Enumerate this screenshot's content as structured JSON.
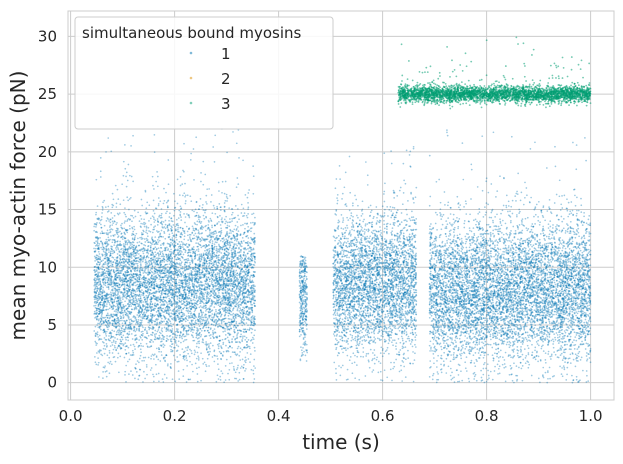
{
  "chart_data": {
    "type": "scatter",
    "title": "",
    "xlabel": "time (s)",
    "ylabel": "mean myo-actin force (pN)",
    "xlim": [
      -0.005,
      1.045
    ],
    "ylim": [
      -1.5,
      32.2
    ],
    "xticks": [
      "0.0",
      "0.2",
      "0.4",
      "0.6",
      "0.8",
      "1.0"
    ],
    "xtick_values": [
      0.0,
      0.2,
      0.4,
      0.6,
      0.8,
      1.0
    ],
    "yticks": [
      "0",
      "5",
      "10",
      "15",
      "20",
      "25",
      "30"
    ],
    "ytick_values": [
      0,
      5,
      10,
      15,
      20,
      25,
      30
    ],
    "grid": true,
    "legend": {
      "title": "simultaneous bound myosins",
      "placement": "top-left",
      "entries": [
        "1",
        "2",
        "3"
      ]
    },
    "series": [
      {
        "name": "1",
        "color": "#0173b2",
        "segments": [
          {
            "t_start": 0.045,
            "t_end": 0.355,
            "mean_force": 8.5,
            "spread": 3.2,
            "max_force": 22
          },
          {
            "t_start": 0.44,
            "t_end": 0.455,
            "mean_force": 7.0,
            "spread": 2.2,
            "max_force": 11
          },
          {
            "t_start": 0.505,
            "t_end": 0.665,
            "mean_force": 8.5,
            "spread": 3.0,
            "max_force": 21
          },
          {
            "t_start": 0.69,
            "t_end": 1.0,
            "mean_force": 8.0,
            "spread": 3.2,
            "max_force": 22
          }
        ]
      },
      {
        "name": "2",
        "color": "#de8f05",
        "segments": []
      },
      {
        "name": "3",
        "color": "#029e73",
        "segments": [
          {
            "t_start": 0.63,
            "t_end": 1.0,
            "mean_force": 25.0,
            "spread": 0.35,
            "max_force": 30.5
          }
        ]
      }
    ]
  }
}
